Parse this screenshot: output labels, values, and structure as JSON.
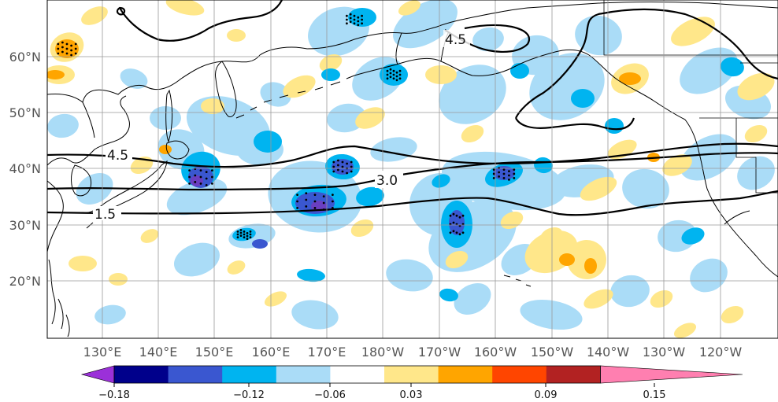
{
  "map": {
    "lat_labels": [
      "60°N",
      "50°N",
      "40°N",
      "30°N",
      "20°N"
    ],
    "lon_labels": [
      "130°E",
      "140°E",
      "150°E",
      "160°E",
      "170°E",
      "180°W",
      "170°W",
      "160°W",
      "150°W",
      "140°W",
      "130°W",
      "120°W"
    ],
    "contour_labels": [
      "4.5",
      "4.5",
      "3.0",
      "1.5"
    ]
  },
  "colorbar": {
    "ticks": [
      "−0.18",
      "−0.12",
      "−0.06",
      "0.03",
      "0.09",
      "0.15"
    ],
    "colors": [
      "#9b30d9",
      "#00008b",
      "#3a57d0",
      "#00b4f0",
      "#aadcf7",
      "#ffffff",
      "#ffe78a",
      "#ffa500",
      "#ff4500",
      "#b22222",
      "#ff7fb0"
    ]
  },
  "colors": {
    "blue_light": "#aadcf7",
    "blue_mid": "#00b4f0",
    "blue_dark": "#3a57d0",
    "purple": "#6a3fc1",
    "yellow": "#ffe78a",
    "orange": "#ffa500",
    "grid": "#999999"
  }
}
